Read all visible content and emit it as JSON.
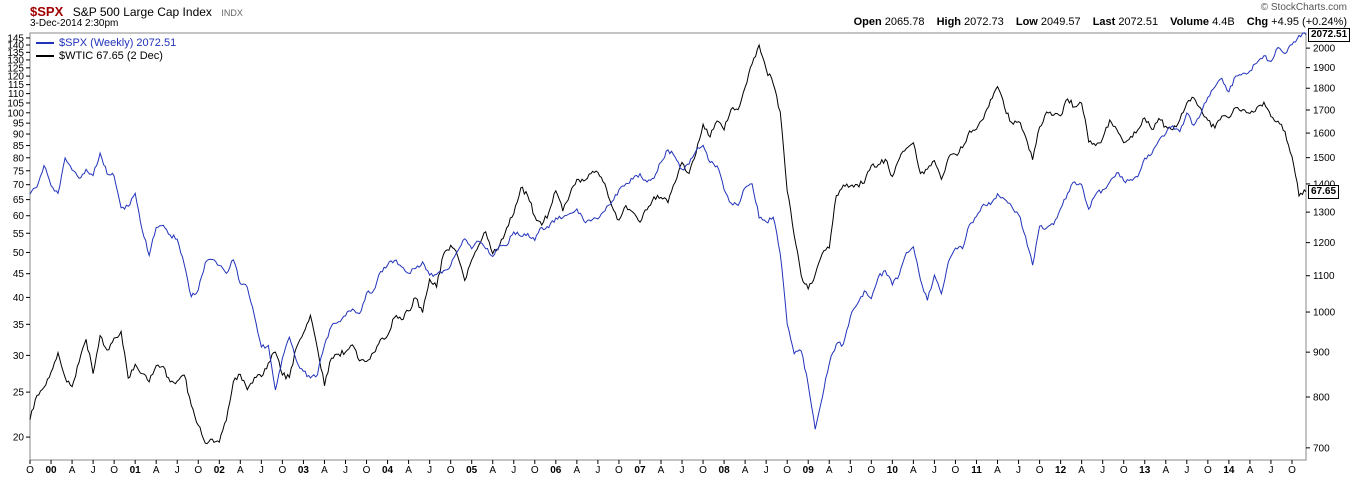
{
  "header": {
    "symbol": "$SPX",
    "name": "S&P 500 Large Cap Index",
    "exchange": "INDX",
    "datetime": "3-Dec-2014 2:30pm",
    "copyright": "© StockCharts.com",
    "quote": {
      "open_label": "Open",
      "open": "2065.78",
      "high_label": "High",
      "high": "2072.73",
      "low_label": "Low",
      "low": "2049.57",
      "last_label": "Last",
      "last": "2072.51",
      "volume_label": "Volume",
      "volume": "4.4B",
      "chg_label": "Chg",
      "chg": "+4.95 (+0.24%)"
    }
  },
  "legend": [
    {
      "label": "$SPX (Weekly) 2072.51",
      "color": "#2233bb"
    },
    {
      "label": "$WTIC 67.65 (2 Dec)",
      "color": "#000000"
    }
  ],
  "price_tags": [
    {
      "text": "2072.51",
      "series": "spx"
    },
    {
      "text": "67.65",
      "series": "wtic"
    }
  ],
  "chart_data": {
    "type": "line",
    "title": "$SPX (S&P 500 Large Cap Index, weekly) vs $WTIC crude oil, Oct 1999 - Dec 2014",
    "grid": false,
    "legend_position": "top-left",
    "x_tick_labels": [
      "O",
      "00",
      "A",
      "J",
      "O",
      "01",
      "A",
      "J",
      "O",
      "02",
      "A",
      "J",
      "O",
      "03",
      "A",
      "J",
      "O",
      "04",
      "A",
      "J",
      "O",
      "05",
      "A",
      "J",
      "O",
      "06",
      "A",
      "J",
      "O",
      "07",
      "A",
      "J",
      "O",
      "08",
      "A",
      "J",
      "O",
      "09",
      "A",
      "J",
      "O",
      "10",
      "A",
      "J",
      "O",
      "11",
      "A",
      "J",
      "O",
      "12",
      "A",
      "J",
      "O",
      "13",
      "A",
      "J",
      "O",
      "14",
      "A",
      "J",
      "O"
    ],
    "x_months_per_tick": 3,
    "left_axis": {
      "scale": "log",
      "min": 17.85,
      "max": 148.6,
      "ticks": [
        145,
        140,
        135,
        130,
        125,
        120,
        115,
        110,
        105,
        100,
        95,
        90,
        85,
        80,
        75,
        70,
        65,
        60,
        55,
        50,
        45,
        40,
        35,
        30,
        25,
        20
      ]
    },
    "right_axis": {
      "scale": "log",
      "min": 678,
      "max": 2081,
      "ticks": [
        2000,
        1900,
        1800,
        1700,
        1600,
        1500,
        1400,
        1300,
        1200,
        1100,
        1000,
        900,
        800,
        700
      ]
    },
    "series": [
      {
        "name": "$SPX (Weekly)",
        "color": "#2233bb",
        "axis": "right",
        "last": 2072.51,
        "values": [
          1363,
          1389,
          1469,
          1394,
          1366,
          1499,
          1452,
          1421,
          1455,
          1431,
          1518,
          1437,
          1429,
          1315,
          1320,
          1366,
          1240,
          1160,
          1249,
          1256,
          1224,
          1211,
          1134,
          1041,
          1060,
          1139,
          1148,
          1130,
          1107,
          1147,
          1077,
          1067,
          990,
          912,
          916,
          815,
          886,
          936,
          880,
          856,
          841,
          848,
          917,
          964,
          975,
          990,
          1008,
          996,
          1051,
          1058,
          1112,
          1131,
          1145,
          1126,
          1107,
          1121,
          1141,
          1102,
          1104,
          1115,
          1130,
          1174,
          1212,
          1181,
          1204,
          1181,
          1157,
          1192,
          1191,
          1234,
          1220,
          1229,
          1207,
          1249,
          1248,
          1280,
          1281,
          1295,
          1311,
          1270,
          1270,
          1277,
          1304,
          1336,
          1378,
          1401,
          1418,
          1438,
          1407,
          1421,
          1482,
          1531,
          1503,
          1455,
          1474,
          1527,
          1549,
          1481,
          1468,
          1379,
          1331,
          1323,
          1386,
          1400,
          1280,
          1267,
          1283,
          1166,
          969,
          896,
          903,
          826,
          735,
          798,
          873,
          919,
          919,
          987,
          1021,
          1057,
          1036,
          1096,
          1115,
          1074,
          1104,
          1169,
          1187,
          1089,
          1031,
          1102,
          1049,
          1141,
          1183,
          1181,
          1258,
          1286,
          1327,
          1326,
          1364,
          1345,
          1321,
          1292,
          1219,
          1131,
          1253,
          1247,
          1258,
          1312,
          1366,
          1408,
          1398,
          1310,
          1362,
          1379,
          1407,
          1441,
          1412,
          1416,
          1426,
          1498,
          1515,
          1569,
          1598,
          1631,
          1606,
          1686,
          1633,
          1682,
          1757,
          1806,
          1848,
          1783,
          1859,
          1872,
          1884,
          1924,
          1960,
          1931,
          2003,
          1972,
          2018,
          2068,
          2072.51
        ]
      },
      {
        "name": "$WTIC",
        "color": "#000000",
        "axis": "left",
        "last": 67.65,
        "values": [
          21.8,
          24.6,
          25.6,
          27.6,
          30.4,
          26.9,
          25.7,
          29.0,
          32.5,
          27.4,
          33.1,
          30.8,
          32.7,
          33.8,
          26.8,
          28.7,
          27.4,
          26.3,
          28.5,
          28.4,
          26.3,
          26.4,
          27.2,
          23.4,
          21.2,
          19.4,
          19.8,
          19.5,
          21.7,
          26.3,
          27.3,
          25.3,
          26.9,
          27.0,
          28.9,
          30.5,
          27.2,
          26.9,
          31.2,
          33.5,
          36.6,
          31.0,
          25.8,
          29.6,
          30.2,
          30.5,
          31.6,
          29.2,
          29.1,
          30.4,
          32.5,
          33.1,
          36.2,
          35.8,
          37.4,
          39.9,
          37.1,
          43.8,
          42.1,
          49.6,
          51.8,
          49.1,
          43.5,
          48.2,
          51.8,
          55.4,
          49.7,
          51.9,
          56.5,
          60.6,
          68.9,
          66.2,
          59.8,
          57.3,
          61.0,
          67.9,
          61.4,
          66.6,
          71.9,
          71.3,
          73.9,
          74.4,
          70.3,
          62.9,
          58.7,
          63.1,
          61.1,
          58.1,
          61.8,
          65.9,
          65.7,
          64.0,
          70.7,
          78.2,
          74.0,
          81.7,
          94.5,
          88.7,
          96.0,
          91.8,
          101.8,
          101.6,
          113.5,
          127.4,
          140.0,
          124.1,
          115.5,
          100.6,
          67.8,
          54.4,
          44.6,
          41.7,
          44.8,
          49.7,
          51.1,
          66.3,
          69.9,
          69.5,
          70.0,
          70.6,
          77.0,
          77.3,
          79.4,
          72.9,
          79.7,
          83.8,
          86.2,
          74.0,
          75.6,
          78.9,
          71.9,
          80.0,
          81.4,
          84.1,
          91.4,
          92.2,
          97.0,
          106.7,
          113.9,
          102.7,
          95.4,
          95.7,
          88.8,
          79.2,
          93.2,
          100.4,
          98.8,
          98.5,
          107.1,
          103.0,
          104.9,
          86.5,
          85.0,
          88.1,
          96.5,
          92.2,
          86.2,
          88.9,
          91.8,
          97.5,
          92.1,
          97.2,
          93.5,
          91.9,
          96.6,
          105.0,
          107.7,
          102.3,
          96.4,
          92.7,
          98.4,
          97.5,
          102.6,
          101.6,
          99.7,
          102.7,
          105.4,
          98.2,
          95.96,
          91.2,
          80.5,
          66.2,
          67.65
        ]
      }
    ]
  }
}
